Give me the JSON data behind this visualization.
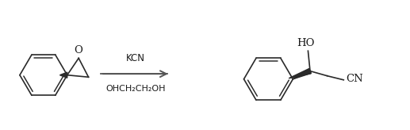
{
  "figure_width": 5.17,
  "figure_height": 1.64,
  "dpi": 100,
  "background_color": "#ffffff",
  "line_color": "#2a2a2a",
  "line_width": 1.2,
  "text_color": "#1a1a1a",
  "arrow_color": "#555555",
  "reagent_line1": "KCN",
  "reagent_line2": "OHCH₂CH₂OH",
  "font_size": 8.5,
  "ho_label": "HO",
  "cn_label": "CN",
  "o_label": "O"
}
